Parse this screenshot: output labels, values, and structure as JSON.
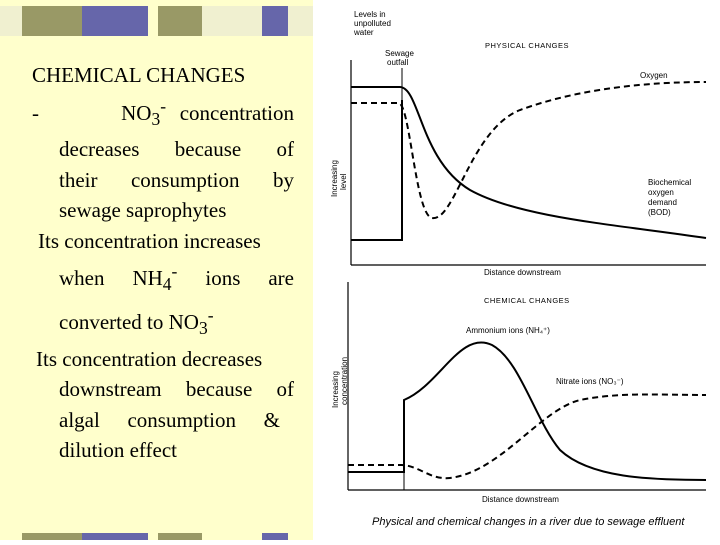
{
  "slide": {
    "heading": "CHEMICAL CHANGES",
    "bullet_dash": "-",
    "no3": "NO",
    "no3_sub": "3",
    "no3_sup": "-",
    "line1_tail": "concentration",
    "line2": "decreases because of",
    "line3": "their consumption by",
    "line4": "sewage saprophytes",
    "para2_start": "Its concentration increases",
    "para2_when": "when NH",
    "para2_sub": "4",
    "para2_sup": "-",
    "para2_tail": "ions are",
    "para2_conv": "converted to NO",
    "para2_conv_sub": "3",
    "para2_conv_sup": "-",
    "para3_start": "Its concentration decreases",
    "para3_l2": "downstream because of",
    "para3_l3": "algal consumption &",
    "para3_l4": "dilution effect"
  },
  "figure": {
    "levels_label": [
      "Levels in",
      "unpolluted",
      "water"
    ],
    "sewage_label": [
      "Sewage",
      "outfall"
    ],
    "physical_title": "PHYSICAL CHANGES",
    "oxygen": "Oxygen",
    "bod_label": [
      "Biochemical",
      "oxygen",
      "demand",
      "(BOD)"
    ],
    "y_label_top": [
      "Increasing",
      "level"
    ],
    "x_label_top": "Distance downstream",
    "chemical_title": "CHEMICAL CHANGES",
    "ammonium": "Ammonium ions (NH₄⁺)",
    "nitrate": "Nitrate ions (NO₃⁻)",
    "y_label_bottom": [
      "Increasing",
      "concentration"
    ],
    "x_label_bottom": "Distance downstream",
    "caption": "Physical and chemical changes in a river due to sewage effluent"
  },
  "colors": {
    "panel_bg": "#ffffcc",
    "bar_olive": "#999966",
    "bar_blue": "#6666aa",
    "bar_cream": "#f0f0d0"
  }
}
